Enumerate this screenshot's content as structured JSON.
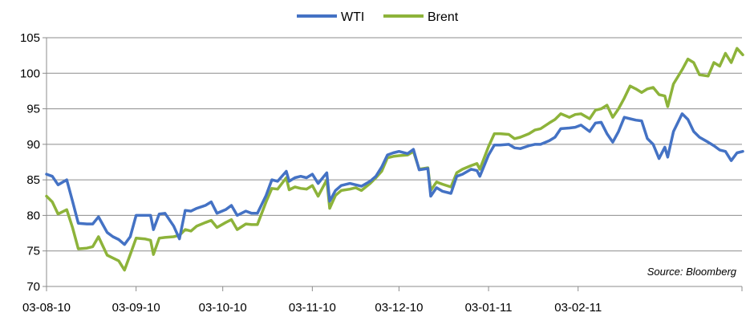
{
  "chart_data": {
    "type": "line",
    "title": "",
    "xlabel": "",
    "ylabel": "",
    "ylim": [
      70,
      105
    ],
    "yticks": [
      70,
      75,
      80,
      85,
      90,
      95,
      100,
      105
    ],
    "xlim": [
      "03-08-10",
      "28-02-11"
    ],
    "x_tick_labels": [
      "03-08-10",
      "03-09-10",
      "03-10-10",
      "03-11-10",
      "03-12-10",
      "03-01-11",
      "03-02-11"
    ],
    "grid": "horizontal",
    "legend": "top-center",
    "annotation": "Source: Bloomberg",
    "series": [
      {
        "name": "WTI",
        "color": "#4472C4",
        "points": [
          [
            "03-08-10",
            85.8
          ],
          [
            "05-08-10",
            85.5
          ],
          [
            "07-08-10",
            84.3
          ],
          [
            "10-08-10",
            85.0
          ],
          [
            "12-08-10",
            82.0
          ],
          [
            "14-08-10",
            78.9
          ],
          [
            "17-08-10",
            78.8
          ],
          [
            "19-08-10",
            78.8
          ],
          [
            "21-08-10",
            79.8
          ],
          [
            "24-08-10",
            77.6
          ],
          [
            "26-08-10",
            77.0
          ],
          [
            "28-08-10",
            76.6
          ],
          [
            "30-08-10",
            75.9
          ],
          [
            "01-09-10",
            77.0
          ],
          [
            "03-09-10",
            80.0
          ],
          [
            "06-09-10",
            80.0
          ],
          [
            "08-09-10",
            80.0
          ],
          [
            "09-09-10",
            78.0
          ],
          [
            "11-09-10",
            80.2
          ],
          [
            "13-09-10",
            80.3
          ],
          [
            "16-09-10",
            78.5
          ],
          [
            "18-09-10",
            76.7
          ],
          [
            "20-09-10",
            80.7
          ],
          [
            "22-09-10",
            80.6
          ],
          [
            "24-09-10",
            81.0
          ],
          [
            "27-09-10",
            81.4
          ],
          [
            "29-09-10",
            81.9
          ],
          [
            "01-10-10",
            80.3
          ],
          [
            "04-10-10",
            80.8
          ],
          [
            "06-10-10",
            81.4
          ],
          [
            "08-10-10",
            80.0
          ],
          [
            "11-10-10",
            80.6
          ],
          [
            "13-10-10",
            80.3
          ],
          [
            "15-10-10",
            80.3
          ],
          [
            "18-10-10",
            82.8
          ],
          [
            "20-10-10",
            85.0
          ],
          [
            "22-10-10",
            84.8
          ],
          [
            "25-10-10",
            86.2
          ],
          [
            "26-10-10",
            84.8
          ],
          [
            "28-10-10",
            85.3
          ],
          [
            "30-10-10",
            85.5
          ],
          [
            "01-11-10",
            85.3
          ],
          [
            "03-11-10",
            85.8
          ],
          [
            "05-11-10",
            84.5
          ],
          [
            "08-11-10",
            86.0
          ],
          [
            "09-11-10",
            82.0
          ],
          [
            "11-11-10",
            83.5
          ],
          [
            "13-11-10",
            84.2
          ],
          [
            "16-11-10",
            84.5
          ],
          [
            "18-11-10",
            84.3
          ],
          [
            "20-11-10",
            84.1
          ],
          [
            "23-11-10",
            84.8
          ],
          [
            "25-11-10",
            85.5
          ],
          [
            "27-11-10",
            86.8
          ],
          [
            "29-11-10",
            88.5
          ],
          [
            "01-12-10",
            88.8
          ],
          [
            "03-12-10",
            89.0
          ],
          [
            "06-12-10",
            88.7
          ],
          [
            "08-12-10",
            89.3
          ],
          [
            "10-12-10",
            86.4
          ],
          [
            "13-12-10",
            86.6
          ],
          [
            "14-12-10",
            82.7
          ],
          [
            "16-12-10",
            83.9
          ],
          [
            "18-12-10",
            83.4
          ],
          [
            "21-12-10",
            83.1
          ],
          [
            "23-12-10",
            85.5
          ],
          [
            "25-12-10",
            85.8
          ],
          [
            "28-12-10",
            86.5
          ],
          [
            "30-12-10",
            86.3
          ],
          [
            "31-12-10",
            85.5
          ],
          [
            "03-01-11",
            88.5
          ],
          [
            "05-01-11",
            89.9
          ],
          [
            "07-01-11",
            89.9
          ],
          [
            "10-01-11",
            90.0
          ],
          [
            "12-01-11",
            89.5
          ],
          [
            "14-01-11",
            89.4
          ],
          [
            "17-01-11",
            89.8
          ],
          [
            "19-01-11",
            90.0
          ],
          [
            "21-01-11",
            90.0
          ],
          [
            "24-01-11",
            90.5
          ],
          [
            "26-01-11",
            91.0
          ],
          [
            "28-01-11",
            92.2
          ],
          [
            "31-01-11",
            92.3
          ],
          [
            "02-02-11",
            92.4
          ],
          [
            "04-02-11",
            92.7
          ],
          [
            "07-02-11",
            91.8
          ],
          [
            "09-02-11",
            93.0
          ],
          [
            "11-02-11",
            93.1
          ],
          [
            "13-02-11",
            91.5
          ],
          [
            "15-02-11",
            90.3
          ],
          [
            "17-02-11",
            91.8
          ],
          [
            "19-02-11",
            93.8
          ],
          [
            "21-02-11",
            93.6
          ],
          [
            "23-02-11",
            93.4
          ],
          [
            "25-02-11",
            93.3
          ],
          [
            "27-02-11",
            90.8
          ],
          [
            "01-03-11",
            90.0
          ],
          [
            "03-03-11",
            88.0
          ],
          [
            "05-03-11",
            89.6
          ],
          [
            "06-03-11",
            88.2
          ],
          [
            "08-03-11",
            91.8
          ],
          [
            "11-03-11",
            94.3
          ],
          [
            "13-03-11",
            93.5
          ],
          [
            "15-03-11",
            91.8
          ],
          [
            "17-03-11",
            91.0
          ],
          [
            "20-03-11",
            90.3
          ],
          [
            "22-03-11",
            89.8
          ],
          [
            "24-03-11",
            89.2
          ],
          [
            "26-03-11",
            89.0
          ],
          [
            "28-03-11",
            87.7
          ],
          [
            "30-03-11",
            88.8
          ],
          [
            "01-04-11",
            89.0
          ]
        ]
      },
      {
        "name": "Brent",
        "color": "#8DB33A",
        "points": [
          [
            "03-08-10",
            82.7
          ],
          [
            "05-08-10",
            81.9
          ],
          [
            "07-08-10",
            80.2
          ],
          [
            "10-08-10",
            80.8
          ],
          [
            "12-08-10",
            78.3
          ],
          [
            "14-08-10",
            75.3
          ],
          [
            "17-08-10",
            75.4
          ],
          [
            "19-08-10",
            75.6
          ],
          [
            "21-08-10",
            77.0
          ],
          [
            "24-08-10",
            74.4
          ],
          [
            "26-08-10",
            74.0
          ],
          [
            "28-08-10",
            73.6
          ],
          [
            "30-08-10",
            72.3
          ],
          [
            "01-09-10",
            74.5
          ],
          [
            "03-09-10",
            76.8
          ],
          [
            "06-09-10",
            76.7
          ],
          [
            "08-09-10",
            76.5
          ],
          [
            "09-09-10",
            74.5
          ],
          [
            "11-09-10",
            76.8
          ],
          [
            "13-09-10",
            76.9
          ],
          [
            "16-09-10",
            77.0
          ],
          [
            "18-09-10",
            77.2
          ],
          [
            "20-09-10",
            78.0
          ],
          [
            "22-09-10",
            77.8
          ],
          [
            "24-09-10",
            78.5
          ],
          [
            "27-09-10",
            79.0
          ],
          [
            "29-09-10",
            79.3
          ],
          [
            "01-10-10",
            78.3
          ],
          [
            "04-10-10",
            79.0
          ],
          [
            "06-10-10",
            79.4
          ],
          [
            "08-10-10",
            78.0
          ],
          [
            "11-10-10",
            78.8
          ],
          [
            "13-10-10",
            78.7
          ],
          [
            "15-10-10",
            78.7
          ],
          [
            "18-10-10",
            81.9
          ],
          [
            "20-10-10",
            83.8
          ],
          [
            "22-10-10",
            83.7
          ],
          [
            "25-10-10",
            85.3
          ],
          [
            "26-10-10",
            83.6
          ],
          [
            "28-10-10",
            84.0
          ],
          [
            "30-10-10",
            83.8
          ],
          [
            "01-11-10",
            83.7
          ],
          [
            "03-11-10",
            84.2
          ],
          [
            "05-11-10",
            82.7
          ],
          [
            "08-11-10",
            85.0
          ],
          [
            "09-11-10",
            81.0
          ],
          [
            "11-11-10",
            82.8
          ],
          [
            "13-11-10",
            83.5
          ],
          [
            "16-11-10",
            83.7
          ],
          [
            "18-11-10",
            83.9
          ],
          [
            "20-11-10",
            83.5
          ],
          [
            "23-11-10",
            84.5
          ],
          [
            "25-11-10",
            85.3
          ],
          [
            "27-11-10",
            86.2
          ],
          [
            "29-11-10",
            88.1
          ],
          [
            "01-12-10",
            88.3
          ],
          [
            "03-12-10",
            88.4
          ],
          [
            "06-12-10",
            88.5
          ],
          [
            "08-12-10",
            89.0
          ],
          [
            "10-12-10",
            86.5
          ],
          [
            "13-12-10",
            86.7
          ],
          [
            "14-12-10",
            83.5
          ],
          [
            "16-12-10",
            84.7
          ],
          [
            "18-12-10",
            84.4
          ],
          [
            "21-12-10",
            84.0
          ],
          [
            "23-12-10",
            86.0
          ],
          [
            "25-12-10",
            86.5
          ],
          [
            "28-12-10",
            87.0
          ],
          [
            "30-12-10",
            87.3
          ],
          [
            "31-12-10",
            86.5
          ],
          [
            "03-01-11",
            89.7
          ],
          [
            "05-01-11",
            91.5
          ],
          [
            "07-01-11",
            91.5
          ],
          [
            "10-01-11",
            91.4
          ],
          [
            "12-01-11",
            90.8
          ],
          [
            "14-01-11",
            91.0
          ],
          [
            "17-01-11",
            91.5
          ],
          [
            "19-01-11",
            92.0
          ],
          [
            "21-01-11",
            92.2
          ],
          [
            "24-01-11",
            93.0
          ],
          [
            "26-01-11",
            93.5
          ],
          [
            "28-01-11",
            94.3
          ],
          [
            "31-01-11",
            93.8
          ],
          [
            "02-02-11",
            94.2
          ],
          [
            "04-02-11",
            94.3
          ],
          [
            "07-02-11",
            93.6
          ],
          [
            "09-02-11",
            94.8
          ],
          [
            "11-02-11",
            95.0
          ],
          [
            "13-02-11",
            95.5
          ],
          [
            "15-02-11",
            93.8
          ],
          [
            "17-02-11",
            95.0
          ],
          [
            "19-02-11",
            96.5
          ],
          [
            "21-02-11",
            98.2
          ],
          [
            "23-02-11",
            97.8
          ],
          [
            "25-02-11",
            97.3
          ],
          [
            "27-02-11",
            97.8
          ],
          [
            "01-03-11",
            98.0
          ],
          [
            "03-03-11",
            97.0
          ],
          [
            "05-03-11",
            96.8
          ],
          [
            "06-03-11",
            95.3
          ],
          [
            "08-03-11",
            98.5
          ],
          [
            "11-03-11",
            100.5
          ],
          [
            "13-03-11",
            102.0
          ],
          [
            "15-03-11",
            101.5
          ],
          [
            "17-03-11",
            99.8
          ],
          [
            "20-03-11",
            99.6
          ],
          [
            "22-03-11",
            101.5
          ],
          [
            "24-03-11",
            101.0
          ],
          [
            "26-03-11",
            102.8
          ],
          [
            "28-03-11",
            101.5
          ],
          [
            "30-03-11",
            103.5
          ],
          [
            "01-04-11",
            102.6
          ]
        ]
      }
    ]
  }
}
